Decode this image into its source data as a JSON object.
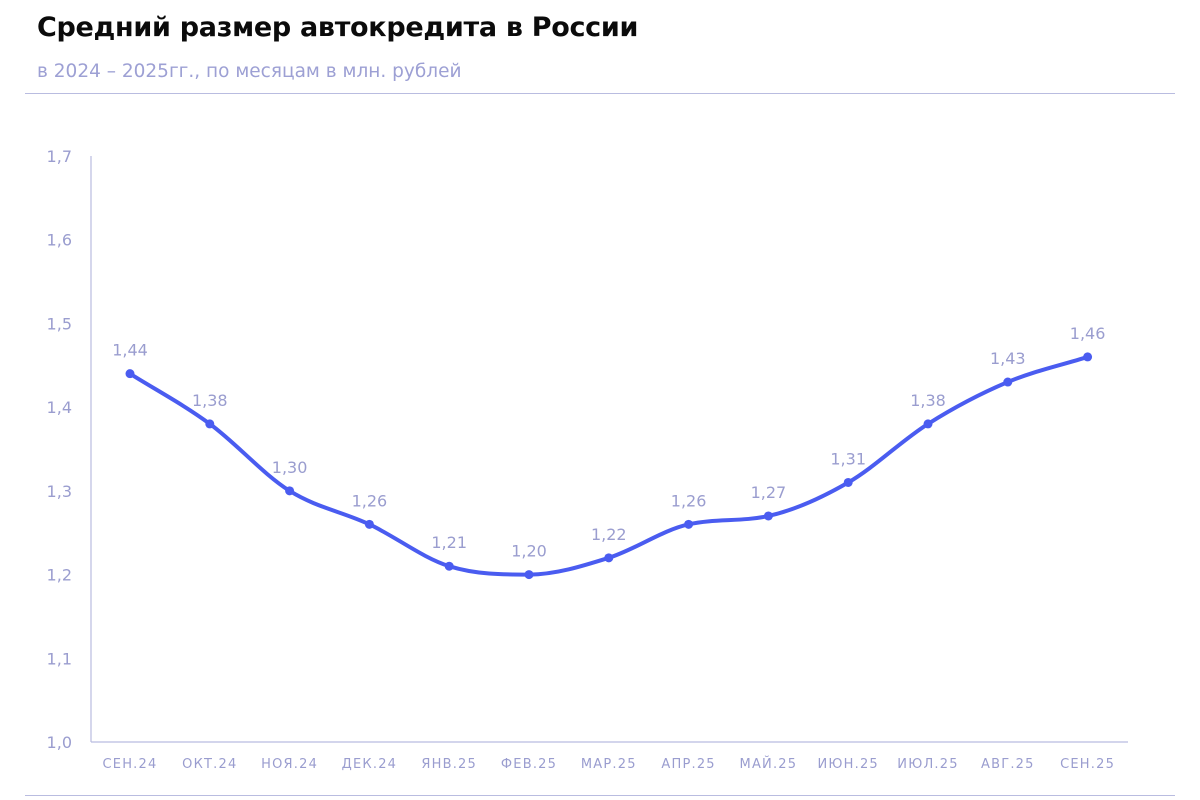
{
  "header": {
    "title": "Средний размер автокредита в России",
    "subtitle": "в 2024 – 2025гг., по месяцам в млн. рублей"
  },
  "colors": {
    "line": "#4a5cf0",
    "axis": "#b9bce0",
    "tick_text": "#9a9dcf",
    "data_label": "#9a9dcf",
    "title": "#0b0b0b",
    "subtitle": "#9da0d4"
  },
  "chart_data": {
    "type": "line",
    "title": "Средний размер автокредита в России",
    "subtitle": "в 2024 – 2025гг., по месяцам в млн. рублей",
    "xlabel": "",
    "ylabel": "",
    "categories": [
      "СЕН.24",
      "ОКТ.24",
      "НОЯ.24",
      "ДЕК.24",
      "ЯНВ.25",
      "ФЕВ.25",
      "МАР.25",
      "АПР.25",
      "МАЙ.25",
      "ИЮН.25",
      "ИЮЛ.25",
      "АВГ.25",
      "СЕН.25"
    ],
    "series": [
      {
        "values": [
          1.44,
          1.38,
          1.3,
          1.26,
          1.21,
          1.2,
          1.22,
          1.26,
          1.27,
          1.31,
          1.38,
          1.43,
          1.46
        ],
        "labels": [
          "1,44",
          "1,38",
          "1,30",
          "1,26",
          "1,21",
          "1,20",
          "1,22",
          "1,26",
          "1,27",
          "1,31",
          "1,38",
          "1,43",
          "1,46"
        ]
      }
    ],
    "ylim": [
      1.0,
      1.7
    ],
    "yticks": [
      1.0,
      1.1,
      1.2,
      1.3,
      1.4,
      1.5,
      1.6,
      1.7
    ],
    "ytick_labels": [
      "1,0",
      "1,1",
      "1,2",
      "1,3",
      "1,4",
      "1,5",
      "1,6",
      "1,7"
    ],
    "grid": false,
    "legend": "none",
    "smooth": true
  }
}
